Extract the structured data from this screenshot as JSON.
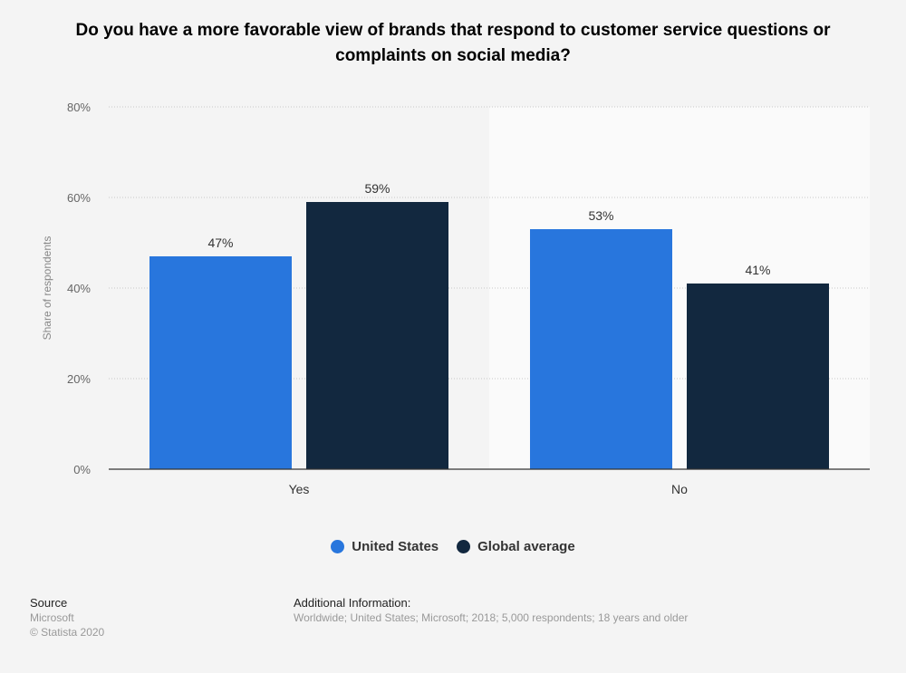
{
  "chart_data": {
    "type": "bar",
    "title": "Do you have a more favorable view of brands that respond to customer service questions or complaints on social media?",
    "categories": [
      "Yes",
      "No"
    ],
    "series": [
      {
        "name": "United States",
        "values": [
          47,
          53
        ],
        "color": "#2876dd"
      },
      {
        "name": "Global average",
        "values": [
          59,
          41
        ],
        "color": "#12283f"
      }
    ],
    "ylabel": "Share of respondents",
    "ylim": [
      0,
      80
    ],
    "yticks": [
      0,
      20,
      40,
      60,
      80
    ],
    "ytick_labels": [
      "0%",
      "20%",
      "40%",
      "60%",
      "80%"
    ],
    "value_suffix": "%",
    "grid": true,
    "legend_placement": "bottom"
  },
  "footer": {
    "source_heading": "Source",
    "source": "Microsoft",
    "copyright": "© Statista 2020",
    "info_heading": "Additional Information:",
    "info": "Worldwide; United States; Microsoft; 2018; 5,000 respondents; 18 years and older"
  }
}
